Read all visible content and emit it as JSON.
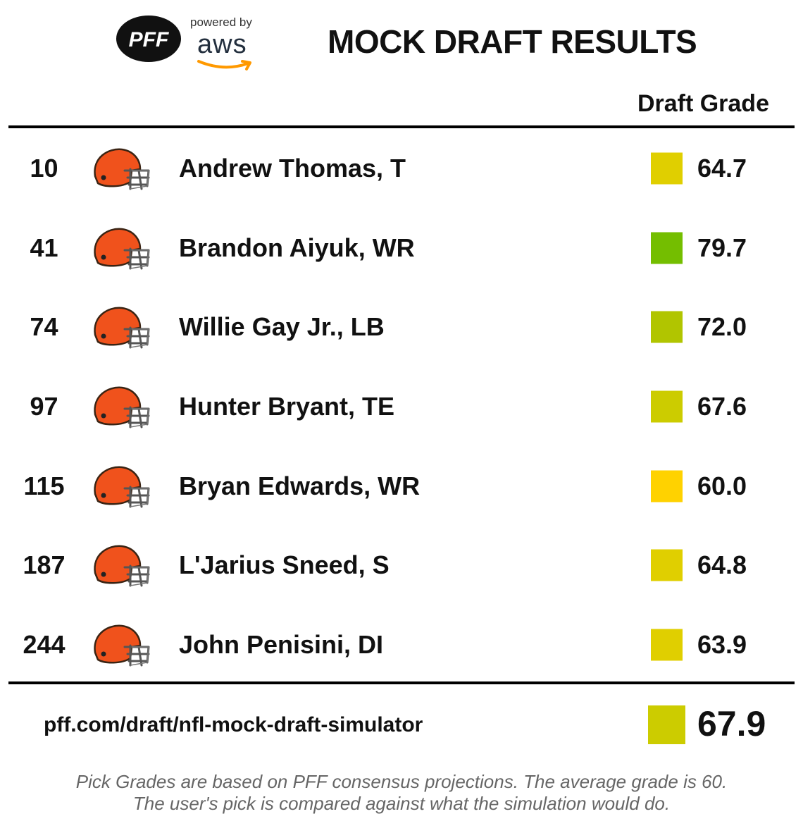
{
  "header": {
    "pff_logo": "PFF",
    "aws_powered": "powered by",
    "aws_word": "aws",
    "title": "MOCK DRAFT RESULTS",
    "column_header": "Draft Grade"
  },
  "picks": [
    {
      "pick": "10",
      "player": "Andrew Thomas, T",
      "grade": "64.7",
      "color": "#e0cf00"
    },
    {
      "pick": "41",
      "player": "Brandon Aiyuk, WR",
      "grade": "79.7",
      "color": "#74be00"
    },
    {
      "pick": "74",
      "player": "Willie Gay Jr., LB",
      "grade": "72.0",
      "color": "#b1c500"
    },
    {
      "pick": "97",
      "player": "Hunter Bryant, TE",
      "grade": "67.6",
      "color": "#cccc00"
    },
    {
      "pick": "115",
      "player": "Bryan Edwards, WR",
      "grade": "60.0",
      "color": "#ffd200"
    },
    {
      "pick": "187",
      "player": "L'Jarius Sneed, S",
      "grade": "64.8",
      "color": "#e0cf00"
    },
    {
      "pick": "244",
      "player": "John Penisini, DI",
      "grade": "63.9",
      "color": "#e0cf00"
    }
  ],
  "team_icon": "cleveland-browns-helmet-icon",
  "footer": {
    "url": "pff.com/draft/nfl-mock-draft-simulator",
    "overall_grade": "67.9",
    "overall_color": "#cccc00",
    "note_line1": "Pick Grades are based on PFF consensus projections. The average grade is 60.",
    "note_line2": "The user's pick is compared against what the simulation would do."
  }
}
